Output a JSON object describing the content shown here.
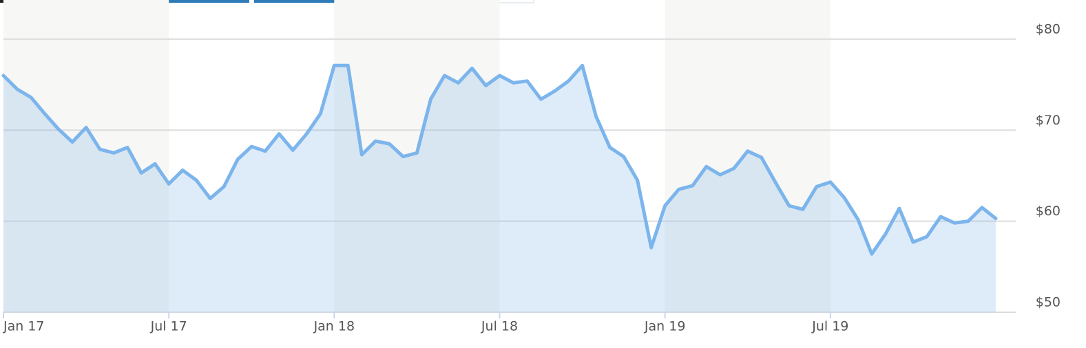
{
  "chart_data": {
    "type": "line",
    "categories": [
      "Jan 17",
      null,
      null,
      null,
      null,
      null,
      null,
      null,
      null,
      null,
      null,
      null,
      "Jul 17",
      null,
      null,
      null,
      null,
      null,
      null,
      null,
      null,
      null,
      null,
      null,
      "Jan 18",
      null,
      null,
      null,
      null,
      null,
      null,
      null,
      null,
      null,
      null,
      null,
      "Jul 18",
      null,
      null,
      null,
      null,
      null,
      null,
      null,
      null,
      null,
      null,
      null,
      "Jan 19",
      null,
      null,
      null,
      null,
      null,
      null,
      null,
      null,
      null,
      null,
      null,
      "Jul 19",
      null,
      null,
      null,
      null,
      null,
      null,
      null,
      null,
      null,
      null,
      null,
      null
    ],
    "values": [
      76.0,
      74.5,
      73.6,
      71.8,
      70.1,
      68.7,
      70.3,
      67.9,
      67.5,
      68.1,
      65.3,
      66.3,
      64.1,
      65.6,
      64.5,
      62.5,
      63.8,
      66.8,
      68.2,
      67.7,
      69.6,
      67.8,
      69.6,
      71.8,
      77.1,
      77.1,
      67.3,
      68.8,
      68.5,
      67.1,
      67.5,
      73.4,
      76.0,
      75.2,
      76.8,
      74.9,
      76.0,
      75.2,
      75.4,
      73.4,
      74.3,
      75.4,
      77.1,
      71.5,
      68.1,
      67.1,
      64.5,
      57.1,
      61.7,
      63.5,
      63.9,
      66.0,
      65.1,
      65.8,
      67.7,
      67.0,
      64.3,
      61.7,
      61.3,
      63.8,
      64.3,
      62.6,
      60.2,
      56.4,
      58.6,
      61.4,
      57.7,
      58.3,
      60.5,
      59.8,
      60.0,
      61.5,
      60.3
    ],
    "color": "#7cb5ec",
    "ylim": [
      50,
      84.3
    ],
    "yticks": [
      {
        "value": 50,
        "label": "$50"
      },
      {
        "value": 60,
        "label": "$60"
      },
      {
        "value": 70,
        "label": "$70"
      },
      {
        "value": 80,
        "label": "$80"
      }
    ],
    "grid": true
  }
}
